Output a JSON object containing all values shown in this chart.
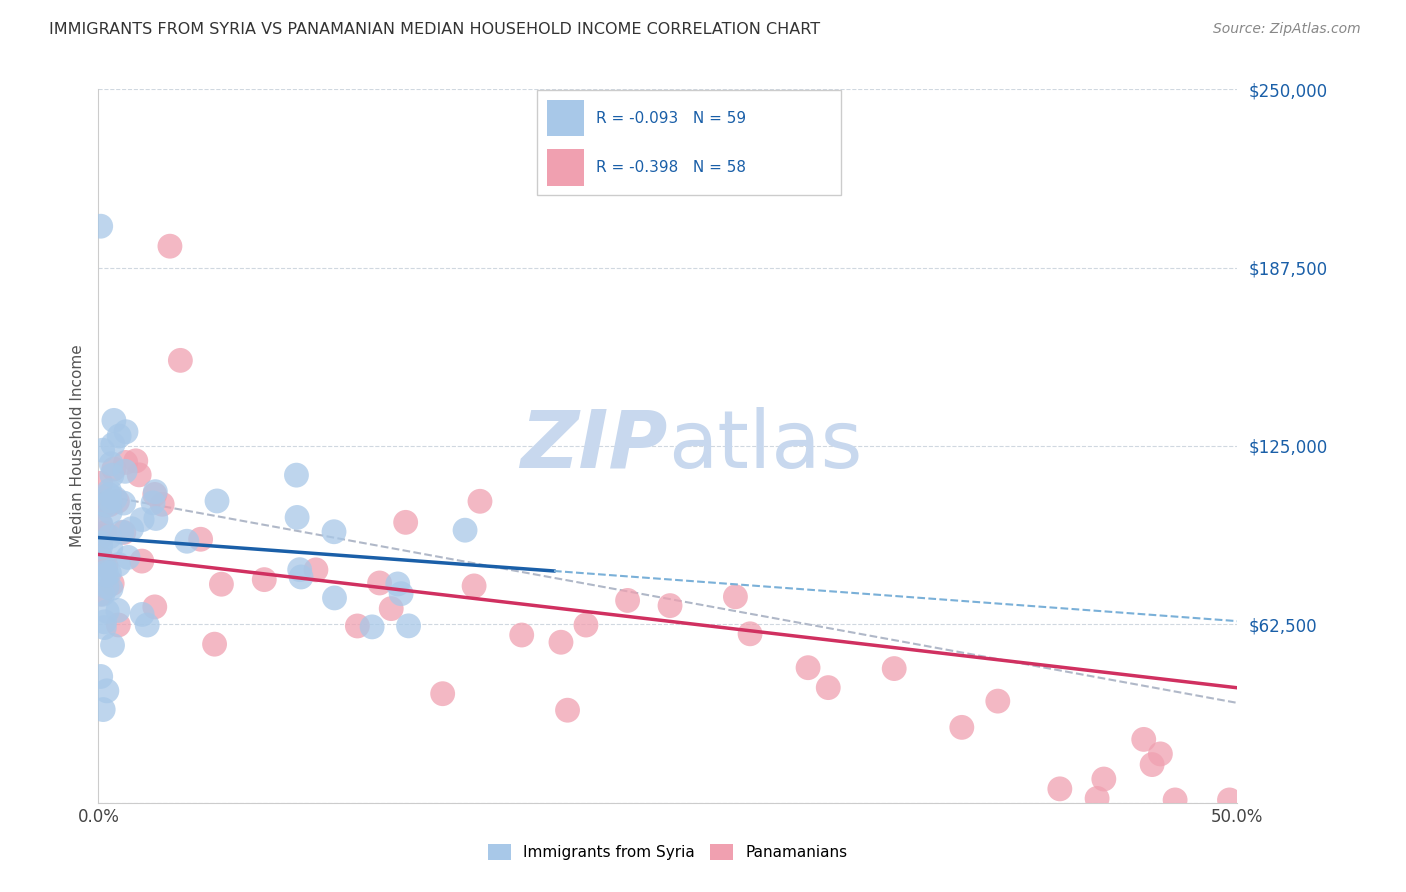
{
  "title": "IMMIGRANTS FROM SYRIA VS PANAMANIAN MEDIAN HOUSEHOLD INCOME CORRELATION CHART",
  "source": "Source: ZipAtlas.com",
  "ylabel": "Median Household Income",
  "yticks": [
    0,
    62500,
    125000,
    187500,
    250000
  ],
  "ytick_labels": [
    "",
    "$62,500",
    "$125,000",
    "$187,500",
    "$250,000"
  ],
  "xmin": 0.0,
  "xmax": 0.5,
  "ymin": 0,
  "ymax": 250000,
  "legend_r1": "R = -0.093",
  "legend_n1": "N = 59",
  "legend_r2": "R = -0.398",
  "legend_n2": "N = 58",
  "legend_label1": "Immigrants from Syria",
  "legend_label2": "Panamanians",
  "color_blue": "#a8c8e8",
  "color_pink": "#f0a0b0",
  "color_blue_line": "#1a5fa8",
  "color_pink_line": "#d03060",
  "color_blue_dashed": "#7ab0d8",
  "color_text_blue": "#1a5fa8",
  "color_trend_gray": "#b0b8c8",
  "watermark_color": "#c8d8ee",
  "grid_color": "#d0d8e0"
}
